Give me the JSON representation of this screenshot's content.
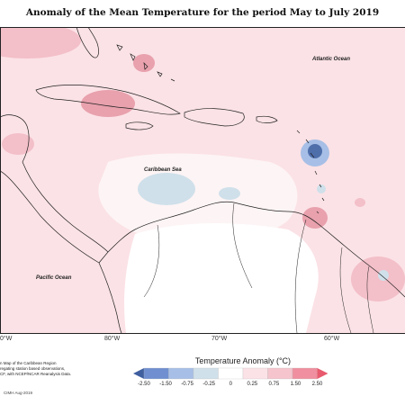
{
  "title": "Anomaly of the Mean Temperature for the period May to July 2019",
  "labels": {
    "atlantic": "Atlantic Ocean",
    "caribbean": "Caribbean Sea",
    "pacific": "Pacific Ocean"
  },
  "longitudes": [
    "0°W",
    "80°W",
    "70°W",
    "60°W"
  ],
  "source_lines": [
    "n Map of the Caribbean Region",
    "regating station based observations,",
    "CF, with NCEP/NCAR Reanalysis Data."
  ],
  "credit": "CIMH Aug-2019",
  "legend": {
    "title": "Temperature Anomaly (°C)",
    "ticks": [
      "-2.50",
      "-1.50",
      "-0.75",
      "-0.25",
      "0",
      "0.25",
      "0.75",
      "1.50",
      "2.50"
    ],
    "colors": [
      "#3f5f9f",
      "#6f8fd0",
      "#a7bfe6",
      "#cfe0ea",
      "#ffffff",
      "#fbe2e6",
      "#f5c4cc",
      "#ef8f9f",
      "#e85a6e"
    ]
  },
  "colors": {
    "base_warm": "#fbe2e6",
    "warm_mid": "#f3bfc8",
    "warm_high": "#e8a1ad",
    "cool_light": "#d7e6ef",
    "cool_mid": "#a7bfe6",
    "cool_dark": "#4f6fab",
    "neutral": "#fdf4f5"
  }
}
